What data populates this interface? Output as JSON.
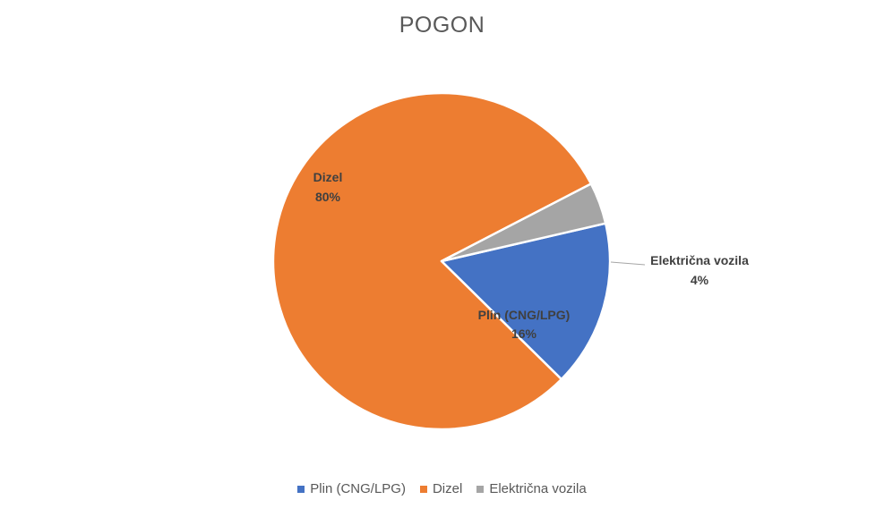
{
  "chart_data": {
    "type": "pie",
    "title": "POGON",
    "slices": [
      {
        "label": "Plin (CNG/LPG)",
        "value": 16,
        "value_label": "16%",
        "color": "#4472C4"
      },
      {
        "label": "Dizel",
        "value": 80,
        "value_label": "80%",
        "color": "#ED7D31"
      },
      {
        "label": "Električna vozila",
        "value": 4,
        "value_label": "4%",
        "color": "#A5A5A5"
      }
    ],
    "legend_position": "bottom"
  }
}
